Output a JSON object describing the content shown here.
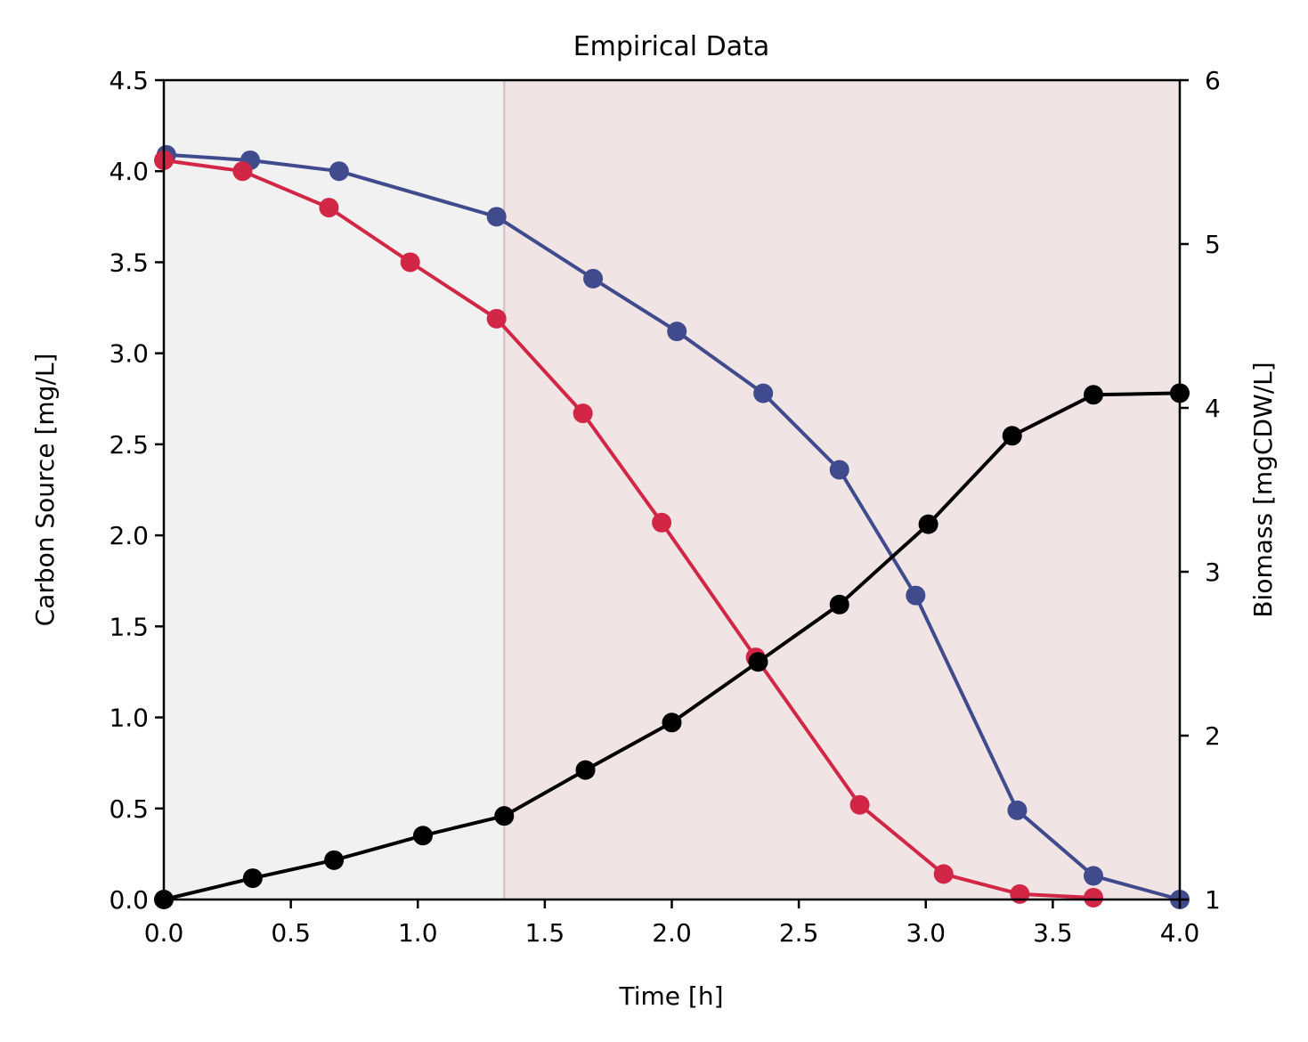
{
  "chart_data": {
    "type": "line",
    "title": "Empirical Data",
    "xlabel": "Time [h]",
    "ylabel": "Carbon Source [mg/L]",
    "y2label": "Biomass [mgCDW/L]",
    "xlim": [
      0,
      4
    ],
    "ylim": [
      0,
      4.5
    ],
    "y2lim": [
      1,
      6
    ],
    "x_ticks": [
      "0.0",
      "0.5",
      "1.0",
      "1.5",
      "2.0",
      "2.5",
      "3.0",
      "3.5",
      "4.0"
    ],
    "y_ticks": [
      "0.0",
      "0.5",
      "1.0",
      "1.5",
      "2.0",
      "2.5",
      "3.0",
      "3.5",
      "4.0",
      "4.5"
    ],
    "y2_ticks": [
      "1",
      "2",
      "3",
      "4",
      "5",
      "6"
    ],
    "grid": false,
    "legend": "none",
    "shaded_regions": [
      {
        "x_start": 0,
        "x_end": 1.34,
        "color": "#f1f1f1"
      },
      {
        "x_start": 1.34,
        "x_end": 4.0,
        "color": "#f1e4e5"
      }
    ],
    "divider_line": {
      "x": 1.34,
      "color": "#d7c5c5"
    },
    "series": [
      {
        "axis": "left",
        "color": "#3f4b8c",
        "points": [
          [
            0.01,
            4.09
          ],
          [
            0.34,
            4.06
          ],
          [
            0.69,
            4.0
          ],
          [
            1.31,
            3.75
          ],
          [
            1.69,
            3.41
          ],
          [
            2.02,
            3.12
          ],
          [
            2.36,
            2.78
          ],
          [
            2.66,
            2.36
          ],
          [
            2.96,
            1.67
          ],
          [
            3.36,
            0.49
          ],
          [
            3.66,
            0.13
          ],
          [
            4.0,
            0.0
          ]
        ]
      },
      {
        "axis": "left",
        "color": "#d12645",
        "points": [
          [
            0.0,
            4.06
          ],
          [
            0.31,
            4.0
          ],
          [
            0.65,
            3.8
          ],
          [
            0.97,
            3.5
          ],
          [
            1.31,
            3.19
          ],
          [
            1.65,
            2.67
          ],
          [
            1.96,
            2.07
          ],
          [
            2.33,
            1.33
          ],
          [
            2.74,
            0.52
          ],
          [
            3.07,
            0.14
          ],
          [
            3.37,
            0.03
          ],
          [
            3.66,
            0.01
          ]
        ]
      },
      {
        "axis": "right",
        "color": "#000000",
        "points": [
          [
            0.0,
            1.0
          ],
          [
            0.35,
            1.13
          ],
          [
            0.67,
            1.24
          ],
          [
            1.02,
            1.39
          ],
          [
            1.34,
            1.51
          ],
          [
            1.66,
            1.79
          ],
          [
            2.0,
            2.08
          ],
          [
            2.34,
            2.45
          ],
          [
            2.66,
            2.8
          ],
          [
            3.01,
            3.29
          ],
          [
            3.34,
            3.83
          ],
          [
            3.66,
            4.08
          ],
          [
            4.0,
            4.09
          ]
        ]
      }
    ]
  }
}
